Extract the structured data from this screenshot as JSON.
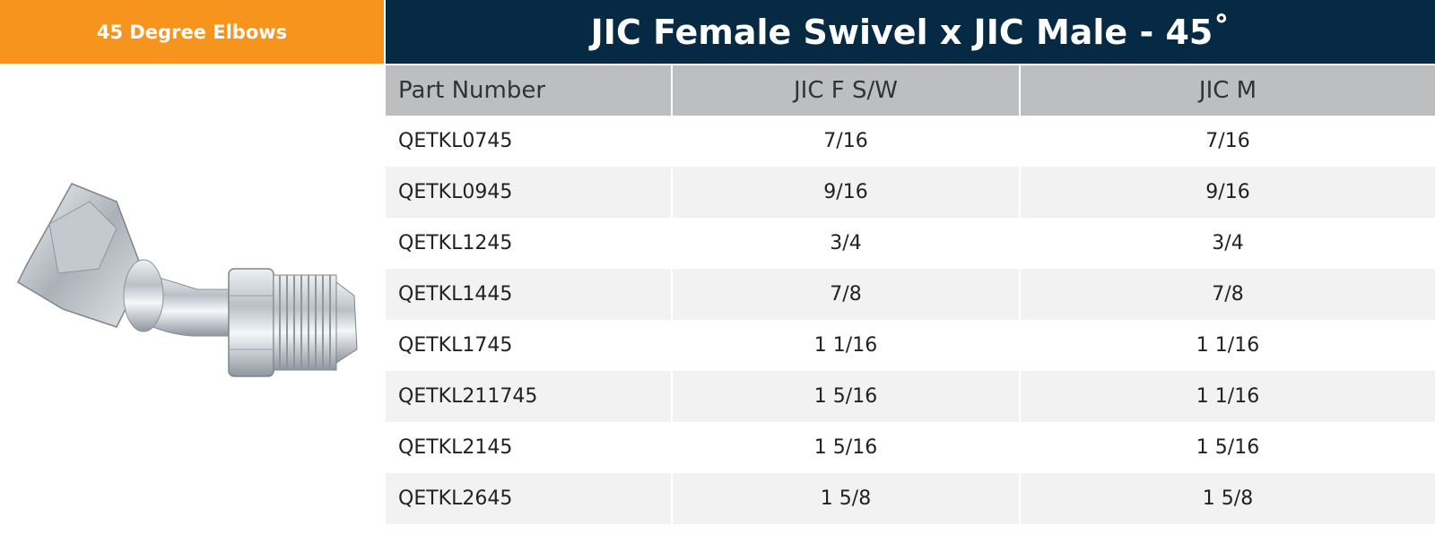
{
  "category": "45 Degree Elbows",
  "title": "JIC Female Swivel x JIC Male - 45˚",
  "image": {
    "icon": "jic-45-elbow-fitting-icon"
  },
  "table": {
    "headers": [
      "Part Number",
      "JIC F S/W",
      "JIC M"
    ],
    "rows": [
      [
        "QETKL0745",
        "7/16",
        "7/16"
      ],
      [
        "QETKL0945",
        "9/16",
        "9/16"
      ],
      [
        "QETKL1245",
        "3/4",
        "3/4"
      ],
      [
        "QETKL1445",
        "7/8",
        "7/8"
      ],
      [
        "QETKL1745",
        "1 1/16",
        "1 1/16"
      ],
      [
        "QETKL211745",
        "1 5/16",
        "1 1/16"
      ],
      [
        "QETKL2145",
        "1 5/16",
        "1 5/16"
      ],
      [
        "QETKL2645",
        "1 5/8",
        "1 5/8"
      ]
    ]
  },
  "colors": {
    "category_bg": "#F7941D",
    "title_bg": "#062A44",
    "header_bg": "#BDBEC0",
    "stripe_bg": "#F2F2F3"
  }
}
